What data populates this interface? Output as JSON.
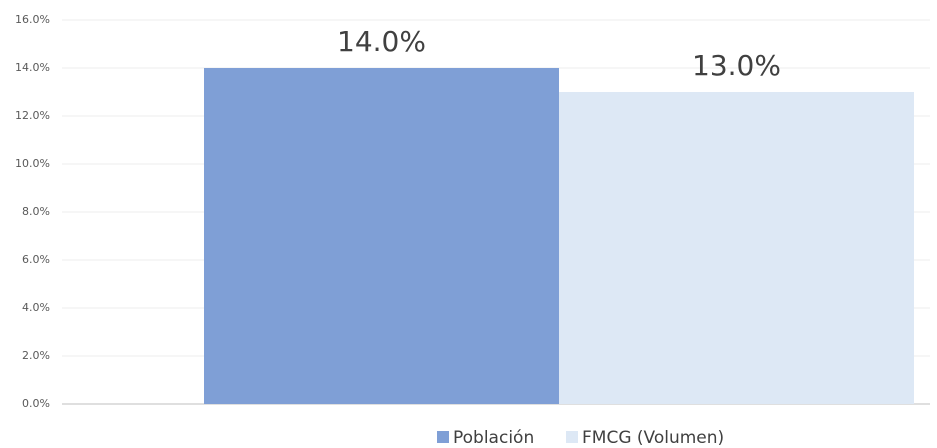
{
  "chart_data": {
    "type": "bar",
    "categories": [
      null
    ],
    "series": [
      {
        "name": "Población",
        "color": "#7f9fd6",
        "values": [
          14
        ],
        "value_labels": [
          "14.0%"
        ]
      },
      {
        "name": "FMCG (Volumen)",
        "color": "#dde8f5",
        "values": [
          13
        ],
        "value_labels": [
          "13.0%"
        ]
      }
    ],
    "ylim": [
      0,
      16
    ],
    "yticks": [
      {
        "value": 0,
        "label": "0.0%"
      },
      {
        "value": 2,
        "label": "2.0%"
      },
      {
        "value": 4,
        "label": "4.0%"
      },
      {
        "value": 6,
        "label": "6.0%"
      },
      {
        "value": 8,
        "label": "8.0%"
      },
      {
        "value": 10,
        "label": "10.0%"
      },
      {
        "value": 12,
        "label": "12.0%"
      },
      {
        "value": 14,
        "label": "14.0%"
      },
      {
        "value": 16,
        "label": "16.0%"
      }
    ],
    "grid": true,
    "legend": "bottom"
  }
}
